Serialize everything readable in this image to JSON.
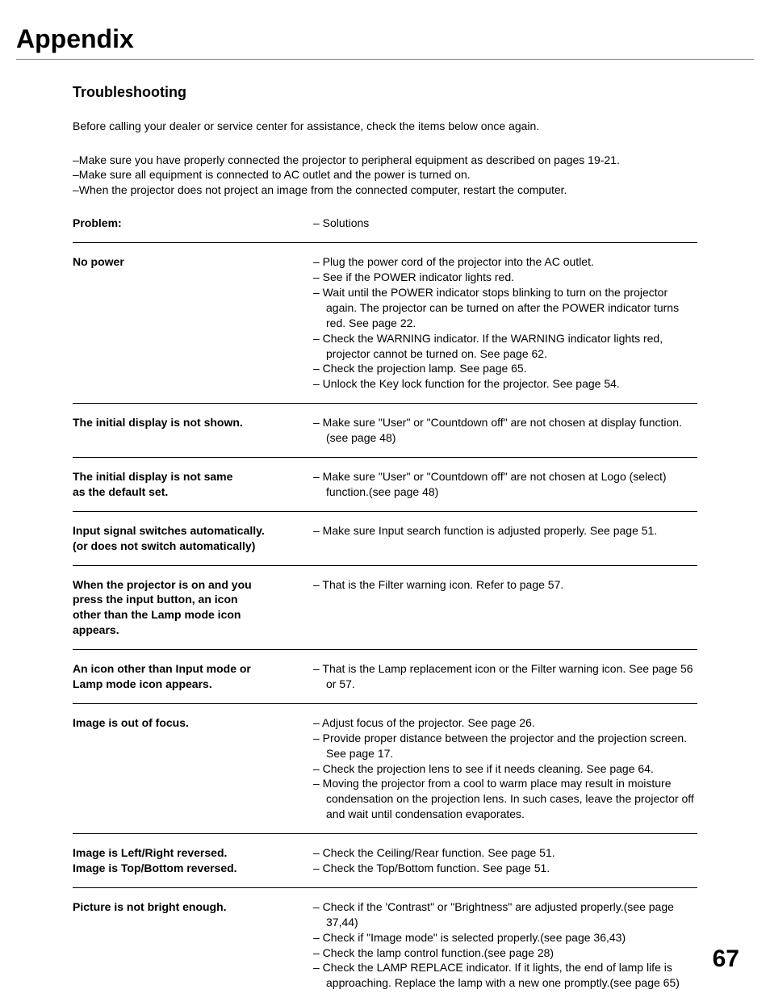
{
  "page": {
    "title": "Appendix",
    "number": "67"
  },
  "section": {
    "heading": "Troubleshooting",
    "intro": "Before calling your dealer or service center for assistance, check the items below once again.",
    "notes": [
      "–Make sure you have properly connected the projector to peripheral equipment as described on pages 19-21.",
      "–Make sure all equipment is connected to AC outlet and the power is turned on.",
      "–When the projector does not project an image from the connected computer, restart the computer."
    ]
  },
  "table": {
    "header": {
      "problem": "Problem:",
      "solution": "– Solutions"
    },
    "rows": [
      {
        "problem": [
          "No power"
        ],
        "solutions": [
          "– Plug the power cord of the projector into the AC outlet.",
          "– See if the POWER indicator lights red.",
          "– Wait until the POWER indicator stops blinking to turn on the projector again. The projector can be turned on after the POWER indicator turns red. See page 22.",
          "– Check the WARNING indicator. If the WARNING indicator lights red, projector cannot be turned on. See page 62.",
          "– Check the projection lamp. See page 65.",
          "– Unlock the Key lock function for the projector. See page 54."
        ]
      },
      {
        "problem": [
          "The initial display is not shown."
        ],
        "solutions": [
          "– Make sure \"User\" or \"Countdown off\" are not chosen at display function.(see page 48)"
        ]
      },
      {
        "problem": [
          "The initial display is not same",
          "as the default set."
        ],
        "solutions": [
          "– Make sure \"User\" or \"Countdown off\" are not chosen at Logo (select) function.(see page 48)"
        ]
      },
      {
        "problem": [
          "Input signal switches automatically.",
          "(or does not switch automatically)"
        ],
        "solutions": [
          "– Make sure Input search function is adjusted properly.  See page 51."
        ]
      },
      {
        "problem": [
          "When the projector is on and you",
          "press the input button, an icon",
          "other than the Lamp mode icon",
          "appears."
        ],
        "solutions": [
          "– That is the Filter warning icon. Refer to page 57."
        ]
      },
      {
        "problem": [
          "An icon other than Input mode or",
          "Lamp mode icon appears."
        ],
        "solutions": [
          "– That is the Lamp replacement icon or the Filter warning icon.  See page 56 or 57."
        ]
      },
      {
        "problem": [
          "Image is out of focus."
        ],
        "solutions": [
          "– Adjust focus of the projector. See page 26.",
          "– Provide proper distance between the projector and the projection screen. See page 17.",
          "– Check the projection lens to see if it needs cleaning. See page 64.",
          "– Moving the projector from a cool to warm place may result in moisture condensation on the projection lens. In such cases, leave the projector off and wait until condensation evaporates."
        ]
      },
      {
        "problem": [
          "Image is Left/Right reversed.",
          "Image is Top/Bottom reversed."
        ],
        "solutions": [
          "– Check the Ceiling/Rear function. See page 51.",
          "– Check the Top/Bottom function. See page 51."
        ]
      },
      {
        "problem": [
          "Picture is not bright enough."
        ],
        "solutions": [
          "– Check if the 'Contrast\" or \"Brightness\" are adjusted properly.(see page 37,44)",
          "– Check if \"Image mode\" is selected properly.(see page 36,43)",
          "– Check the lamp control function.(see page 28)",
          "– Check the LAMP REPLACE indicator. If it lights, the end of lamp life is approaching. Replace the lamp with a new one promptly.(see page 65)"
        ]
      }
    ]
  }
}
